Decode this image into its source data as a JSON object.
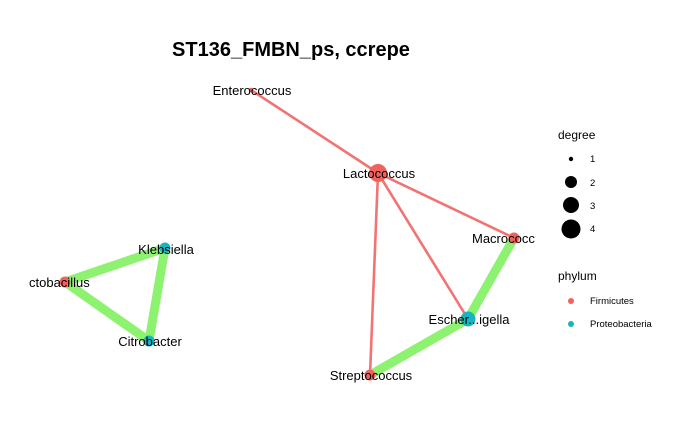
{
  "title": "ST136_FMBN_ps, ccrepe",
  "colors": {
    "Firmicutes": "#F0625C",
    "Proteobacteria": "#18B5BF",
    "edge_negative": "#F27373",
    "edge_positive": "#8EF271"
  },
  "nodes": [
    {
      "id": "Enterococcus",
      "label": "Enterococcus",
      "phylum": "Firmicutes",
      "degree": 1
    },
    {
      "id": "Lactococcus",
      "label": "Lactococcus",
      "phylum": "Firmicutes",
      "degree": 4
    },
    {
      "id": "Macrococcus",
      "label": "Macrococc",
      "phylum": "Firmicutes",
      "degree": 2
    },
    {
      "id": "Escherichia-Shigella",
      "label": "Escher...igella",
      "phylum": "Proteobacteria",
      "degree": 3
    },
    {
      "id": "Streptococcus",
      "label": "Streptococcus",
      "phylum": "Firmicutes",
      "degree": 2
    },
    {
      "id": "Klebsiella",
      "label": "Klebsiella",
      "phylum": "Proteobacteria",
      "degree": 2
    },
    {
      "id": "Lactobacillus",
      "label": "ctobacillus",
      "phylum": "Firmicutes",
      "degree": 2
    },
    {
      "id": "Citrobacter",
      "label": "Citrobacter",
      "phylum": "Proteobacteria",
      "degree": 2
    }
  ],
  "edges": [
    {
      "source": "Enterococcus",
      "target": "Lactococcus",
      "sign": "negative",
      "weight": 1
    },
    {
      "source": "Lactococcus",
      "target": "Macrococcus",
      "sign": "negative",
      "weight": 1
    },
    {
      "source": "Lactococcus",
      "target": "Escherichia-Shigella",
      "sign": "negative",
      "weight": 1
    },
    {
      "source": "Lactococcus",
      "target": "Streptococcus",
      "sign": "negative",
      "weight": 1
    },
    {
      "source": "Macrococcus",
      "target": "Escherichia-Shigella",
      "sign": "positive",
      "weight": 3
    },
    {
      "source": "Escherichia-Shigella",
      "target": "Streptococcus",
      "sign": "positive",
      "weight": 3
    },
    {
      "source": "Klebsiella",
      "target": "Lactobacillus",
      "sign": "positive",
      "weight": 3
    },
    {
      "source": "Lactobacillus",
      "target": "Citrobacter",
      "sign": "positive",
      "weight": 3
    },
    {
      "source": "Klebsiella",
      "target": "Citrobacter",
      "sign": "positive",
      "weight": 3
    }
  ],
  "legend": {
    "degree_title": "degree",
    "degree_levels": [
      "1",
      "2",
      "3",
      "4"
    ],
    "phylum_title": "phylum",
    "phylum_items": [
      "Firmicutes",
      "Proteobacteria"
    ]
  }
}
